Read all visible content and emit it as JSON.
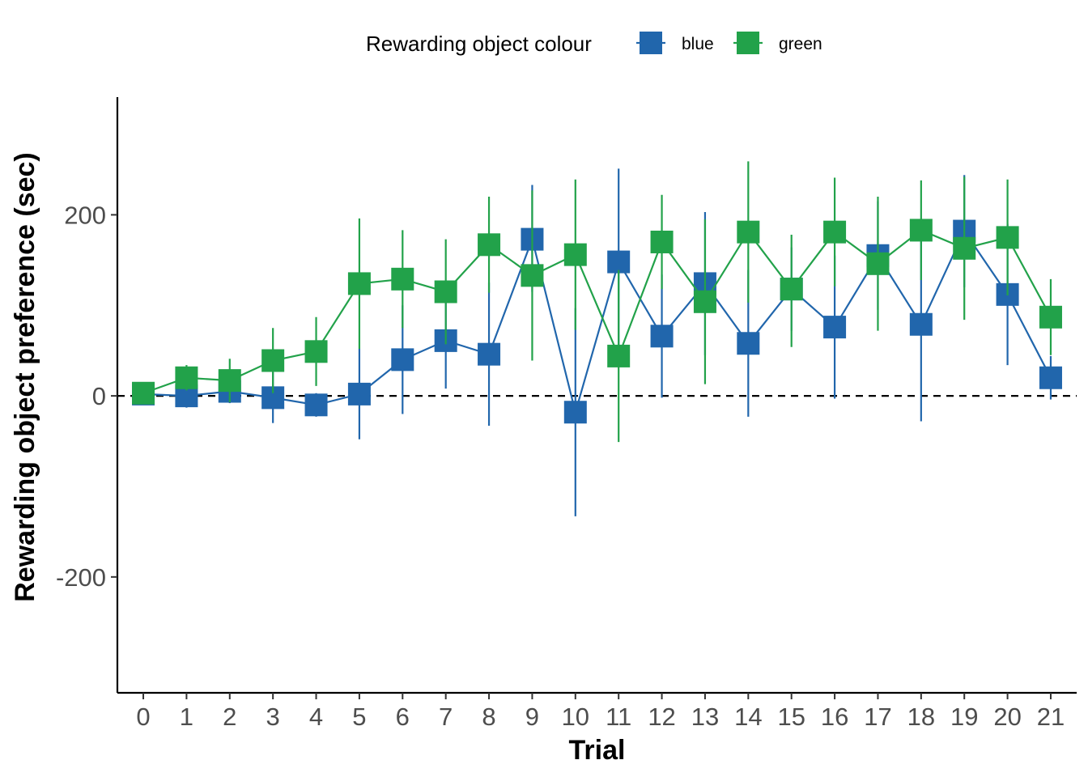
{
  "chart_data": {
    "type": "line",
    "xlabel": "Trial",
    "ylabel": "Rewarding object preference (sec)",
    "x": [
      0,
      1,
      2,
      3,
      4,
      5,
      6,
      7,
      8,
      9,
      10,
      11,
      12,
      13,
      14,
      15,
      16,
      17,
      18,
      19,
      20,
      21
    ],
    "xlim": [
      -0.6,
      21.6
    ],
    "ylim": [
      -328,
      330
    ],
    "yticks": [
      -200,
      0,
      200
    ],
    "ytick_labels": [
      "-200",
      "0",
      "200"
    ],
    "reference_line": {
      "y": 0,
      "style": "dashed"
    },
    "grid": false,
    "legend": {
      "title": "Rewarding object colour",
      "position": "top"
    },
    "marker": "square",
    "error_bars": true,
    "series": [
      {
        "name": "blue",
        "color": "#2166ac",
        "values": [
          2,
          0,
          5,
          -2,
          -10,
          2,
          40,
          61,
          46,
          173,
          -18,
          148,
          66,
          124,
          58,
          118,
          76,
          155,
          79,
          182,
          112,
          20
        ],
        "lower": [
          -5,
          -13,
          -8,
          -30,
          -23,
          -48,
          -20,
          8,
          -33,
          115,
          -133,
          45,
          -2,
          45,
          -23,
          72,
          -3,
          95,
          -28,
          120,
          34,
          -4
        ],
        "upper": [
          9,
          13,
          18,
          26,
          3,
          52,
          100,
          114,
          125,
          233,
          97,
          251,
          134,
          203,
          139,
          164,
          155,
          215,
          186,
          244,
          190,
          44
        ]
      },
      {
        "name": "green",
        "color": "#22a24a",
        "values": [
          3,
          20,
          17,
          39,
          49,
          124,
          129,
          115,
          167,
          133,
          156,
          44,
          170,
          104,
          181,
          118,
          181,
          146,
          183,
          163,
          175,
          87
        ],
        "lower": [
          -3,
          6,
          -7,
          3,
          11,
          52,
          75,
          57,
          114,
          39,
          73,
          -51,
          118,
          13,
          103,
          54,
          121,
          72,
          128,
          84,
          111,
          45
        ],
        "upper": [
          9,
          34,
          41,
          75,
          87,
          196,
          183,
          173,
          220,
          227,
          239,
          139,
          222,
          195,
          259,
          178,
          241,
          220,
          238,
          242,
          239,
          129
        ]
      }
    ]
  }
}
